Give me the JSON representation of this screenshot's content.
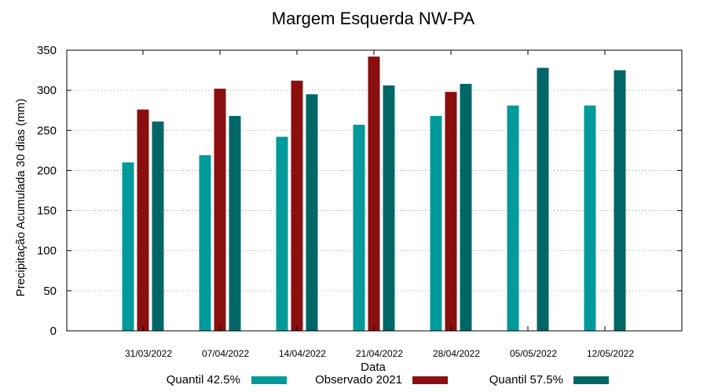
{
  "chart_data": {
    "type": "bar",
    "title": "Margem Esquerda NW-PA",
    "xlabel": "Data",
    "ylabel": "Precipitação Acumulada 30 dias (mm)",
    "ylim": [
      0,
      350
    ],
    "yticks": [
      0,
      50,
      100,
      150,
      200,
      250,
      300,
      350
    ],
    "grid": "horizontal dotted",
    "legend_position": "bottom",
    "categories": [
      "31/03/2022",
      "07/04/2022",
      "14/04/2022",
      "21/04/2022",
      "28/04/2022",
      "05/05/2022",
      "12/05/2022"
    ],
    "series": [
      {
        "name": "Quantil 42.5%",
        "color": "#009a9a",
        "values": [
          210,
          219,
          242,
          257,
          268,
          281,
          281
        ]
      },
      {
        "name": "Observado 2021",
        "color": "#8b0f0f",
        "values": [
          276,
          302,
          312,
          342,
          298,
          null,
          null
        ]
      },
      {
        "name": "Quantil 57.5%",
        "color": "#006666",
        "values": [
          261,
          268,
          295,
          306,
          308,
          328,
          325
        ]
      }
    ]
  }
}
